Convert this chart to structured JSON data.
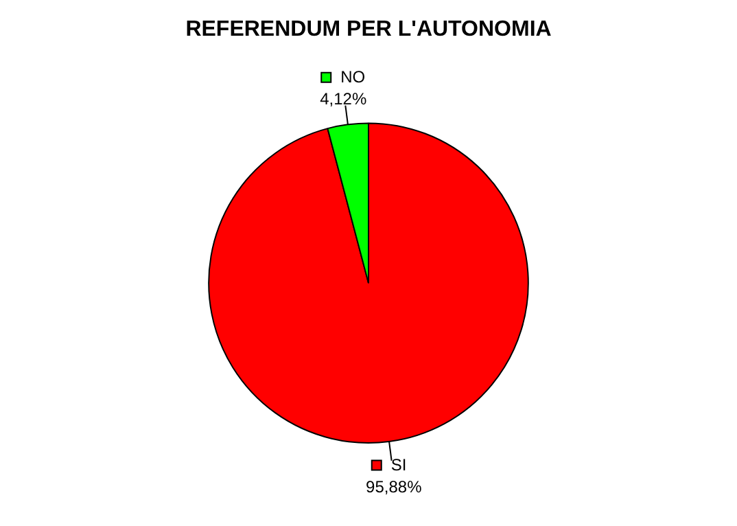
{
  "chart_data": {
    "type": "pie",
    "title": "REFERENDUM PER L'AUTONOMIA",
    "categories": [
      "SI",
      "NO"
    ],
    "values": [
      95.88,
      4.12
    ],
    "colors": [
      "#ff0000",
      "#00ff00"
    ],
    "value_labels": [
      "95,88%",
      "4,12%"
    ],
    "legend": "top"
  }
}
